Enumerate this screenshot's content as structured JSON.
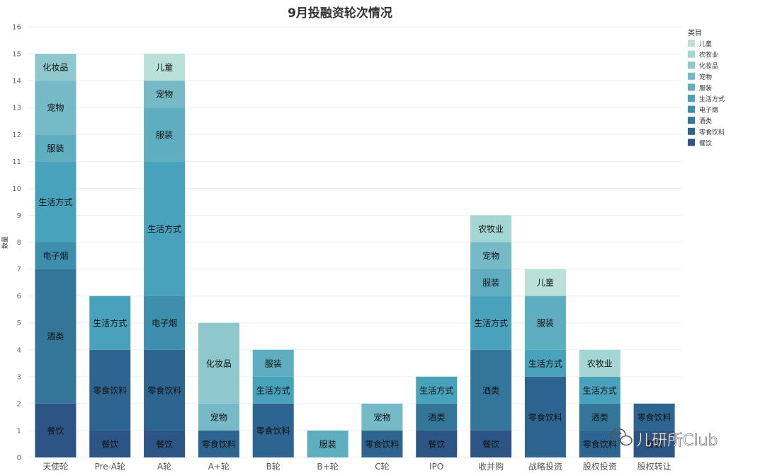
{
  "chart_data": {
    "type": "bar",
    "stacked": true,
    "title": "9月投融资轮次情况",
    "ylabel": "数量",
    "xlabel": "",
    "ylim": [
      0,
      16
    ],
    "yticks": [
      0,
      1,
      2,
      3,
      4,
      5,
      6,
      7,
      8,
      9,
      10,
      11,
      12,
      13,
      14,
      15,
      16
    ],
    "grid": true,
    "legend": {
      "title": "类目",
      "position": "top-right",
      "entries": [
        {
          "name": "儿童",
          "color": "#b9e1d8"
        },
        {
          "name": "农牧业",
          "color": "#a4d6d4"
        },
        {
          "name": "化妆品",
          "color": "#8ec8cc"
        },
        {
          "name": "宠物",
          "color": "#76b9c7"
        },
        {
          "name": "服装",
          "color": "#5eaec0"
        },
        {
          "name": "生活方式",
          "color": "#49a2bb"
        },
        {
          "name": "电子烟",
          "color": "#3d8fad"
        },
        {
          "name": "酒类",
          "color": "#337699"
        },
        {
          "name": "零食饮料",
          "color": "#2e6590"
        },
        {
          "name": "餐饮",
          "color": "#2c5585"
        }
      ]
    },
    "categories": [
      "天使轮",
      "Pre-A轮",
      "A轮",
      "A+轮",
      "B轮",
      "B+轮",
      "C轮",
      "IPO",
      "收并购",
      "战略投资",
      "股权投资",
      "股权转让"
    ],
    "stacks": [
      [
        {
          "name": "餐饮",
          "value": 2
        },
        {
          "name": "酒类",
          "value": 5
        },
        {
          "name": "电子烟",
          "value": 1
        },
        {
          "name": "生活方式",
          "value": 3
        },
        {
          "name": "服装",
          "value": 1
        },
        {
          "name": "宠物",
          "value": 2
        },
        {
          "name": "化妆品",
          "value": 1
        }
      ],
      [
        {
          "name": "餐饮",
          "value": 1
        },
        {
          "name": "零食饮料",
          "value": 3
        },
        {
          "name": "生活方式",
          "value": 2
        }
      ],
      [
        {
          "name": "餐饮",
          "value": 1
        },
        {
          "name": "零食饮料",
          "value": 3
        },
        {
          "name": "电子烟",
          "value": 2
        },
        {
          "name": "生活方式",
          "value": 5
        },
        {
          "name": "服装",
          "value": 2
        },
        {
          "name": "宠物",
          "value": 1
        },
        {
          "name": "儿童",
          "value": 1
        }
      ],
      [
        {
          "name": "零食饮料",
          "value": 1
        },
        {
          "name": "宠物",
          "value": 1
        },
        {
          "name": "化妆品",
          "value": 3
        }
      ],
      [
        {
          "name": "零食饮料",
          "value": 2
        },
        {
          "name": "生活方式",
          "value": 1
        },
        {
          "name": "服装",
          "value": 1
        }
      ],
      [
        {
          "name": "服装",
          "value": 1
        }
      ],
      [
        {
          "name": "零食饮料",
          "value": 1
        },
        {
          "name": "宠物",
          "value": 1
        }
      ],
      [
        {
          "name": "餐饮",
          "value": 1
        },
        {
          "name": "酒类",
          "value": 1
        },
        {
          "name": "生活方式",
          "value": 1
        }
      ],
      [
        {
          "name": "餐饮",
          "value": 1
        },
        {
          "name": "酒类",
          "value": 3
        },
        {
          "name": "生活方式",
          "value": 2
        },
        {
          "name": "服装",
          "value": 1
        },
        {
          "name": "宠物",
          "value": 1
        },
        {
          "name": "农牧业",
          "value": 1
        }
      ],
      [
        {
          "name": "零食饮料",
          "value": 3
        },
        {
          "name": "生活方式",
          "value": 1
        },
        {
          "name": "服装",
          "value": 2
        },
        {
          "name": "儿童",
          "value": 1
        }
      ],
      [
        {
          "name": "零食饮料",
          "value": 1
        },
        {
          "name": "酒类",
          "value": 1
        },
        {
          "name": "生活方式",
          "value": 1
        },
        {
          "name": "农牧业",
          "value": 1
        }
      ],
      [
        {
          "name": "餐饮",
          "value": 1
        },
        {
          "name": "零食饮料",
          "value": 1
        }
      ]
    ]
  },
  "watermark": "儿研所Club"
}
